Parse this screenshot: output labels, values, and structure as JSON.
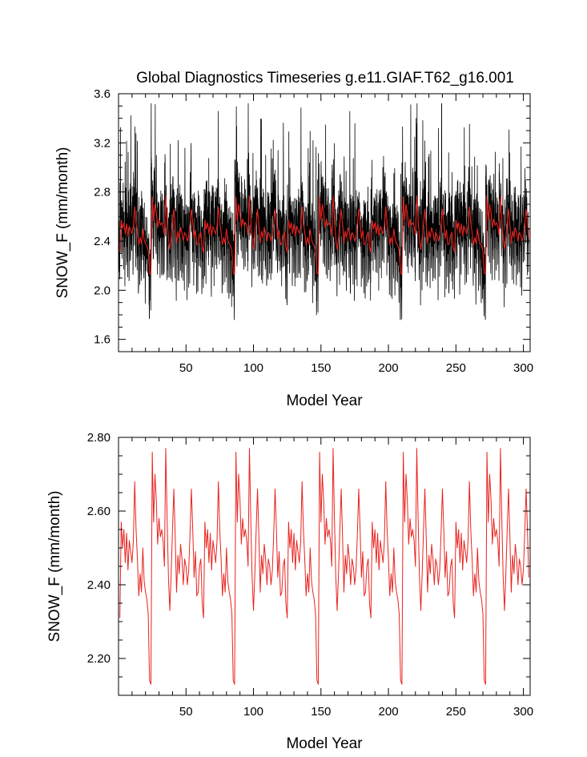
{
  "figure": {
    "title": "Global Diagnostics Timeseries g.e11.GIAF.T62_g16.001"
  },
  "colors": {
    "monthly_series": "#000000",
    "annual_series": "#e8231f",
    "axes": "#000000",
    "background": "#ffffff"
  },
  "chart_data": [
    {
      "type": "line",
      "title": "Global Diagnostics Timeseries g.e11.GIAF.T62_g16.001",
      "xlabel": "Model Year",
      "ylabel": "SNOW_F (mm/month)",
      "xlim": [
        0,
        305
      ],
      "ylim": [
        1.5,
        3.6
      ],
      "xticks": [
        50,
        100,
        150,
        200,
        250,
        300
      ],
      "xtick_labels": [
        "50",
        "100",
        "150",
        "200",
        "250",
        "300"
      ],
      "yticks": [
        1.6,
        2.0,
        2.4,
        2.8,
        3.2,
        3.6
      ],
      "ytick_labels": [
        "1.6",
        "2.0",
        "2.4",
        "2.8",
        "3.2",
        "3.6"
      ],
      "grid": false,
      "forcing_cycle_years": 62,
      "series": [
        {
          "description": "monthly values (black), repeating 62-year forcing cycle",
          "color": "#000000",
          "approx_range": [
            1.76,
            3.52
          ]
        },
        {
          "description": "annual mean (red)",
          "color": "#e8231f",
          "approx_range": [
            2.12,
            2.78
          ]
        }
      ]
    },
    {
      "type": "line",
      "xlabel": "Model Year",
      "ylabel": "SNOW_F (mm/month)",
      "xlim": [
        0,
        305
      ],
      "ylim": [
        2.1,
        2.8
      ],
      "xticks": [
        50,
        100,
        150,
        200,
        250,
        300
      ],
      "xtick_labels": [
        "50",
        "100",
        "150",
        "200",
        "250",
        "300"
      ],
      "yticks": [
        2.2,
        2.4,
        2.6,
        2.8
      ],
      "ytick_labels": [
        "2.20",
        "2.40",
        "2.60",
        "2.80"
      ],
      "grid": false,
      "forcing_cycle_years": 62,
      "series": [
        {
          "description": "annual mean (red), repeating 62-year forcing cycle",
          "color": "#e8231f",
          "cycle_x": [
            1,
            2,
            3,
            4,
            5,
            6,
            7,
            8,
            9,
            10,
            11,
            12,
            13,
            14,
            15,
            16,
            17,
            18,
            19,
            20,
            21,
            22,
            23,
            24,
            25,
            26,
            27,
            28,
            29,
            30,
            31,
            32,
            33,
            34,
            35,
            36,
            37,
            38,
            39,
            40,
            41,
            42,
            43,
            44,
            45,
            46,
            47,
            48,
            49,
            50,
            51,
            52,
            53,
            54,
            55,
            56,
            57,
            58,
            59,
            60,
            61,
            62
          ],
          "cycle_values": [
            2.31,
            2.57,
            2.5,
            2.55,
            2.46,
            2.54,
            2.44,
            2.52,
            2.49,
            2.46,
            2.52,
            2.68,
            2.55,
            2.47,
            2.37,
            2.43,
            2.38,
            2.5,
            2.41,
            2.38,
            2.36,
            2.32,
            2.14,
            2.13,
            2.76,
            2.57,
            2.7,
            2.63,
            2.51,
            2.58,
            2.53,
            2.55,
            2.52,
            2.45,
            2.77,
            2.58,
            2.42,
            2.33,
            2.43,
            2.55,
            2.66,
            2.53,
            2.38,
            2.48,
            2.43,
            2.51,
            2.47,
            2.4,
            2.47,
            2.45,
            2.4,
            2.44,
            2.54,
            2.66,
            2.55,
            2.42,
            2.49,
            2.37,
            2.38,
            2.45,
            2.47,
            2.35
          ]
        }
      ]
    }
  ]
}
